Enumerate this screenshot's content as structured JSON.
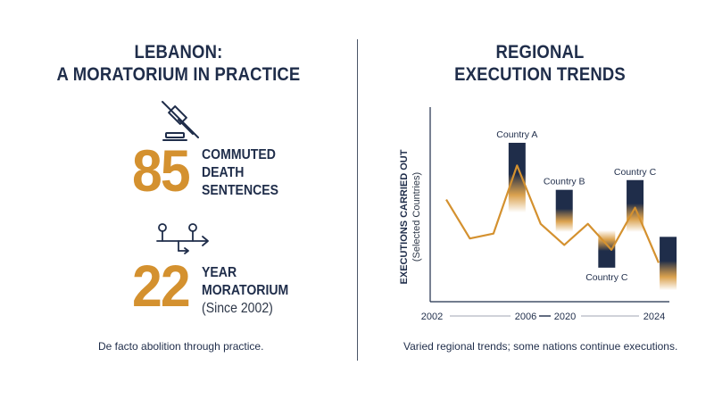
{
  "left_panel": {
    "heading_line1": "LEBANON:",
    "heading_line2": "A MORATORIUM IN PRACTICE",
    "stat1": {
      "number": "85",
      "label_line1": "COMMUTED",
      "label_line2": "DEATH",
      "label_line3": "SENTENCES"
    },
    "stat2": {
      "number": "22",
      "label_line1": "YEAR",
      "label_line2": "MORATORIUM",
      "label_line3": "(Since 2002)"
    },
    "caption": "De facto abolition through practice.",
    "icons": [
      "gavel-crossed-out-icon",
      "timeline-branch-icon"
    ]
  },
  "right_panel": {
    "heading_line1": "REGIONAL",
    "heading_line2": "EXECUTION TRENDS",
    "caption": "Varied regional trends; some nations continue executions."
  },
  "colors": {
    "navy": "#1f2d4a",
    "gold": "#d4912f",
    "bar": "#1f2d4a"
  },
  "chart_data": {
    "type": "line",
    "title": "",
    "ylabel": "EXECUTIONS CARRIED OUT",
    "ylabel_sub": "(Selected Countries)",
    "xlabel": "",
    "x_tick_labels": [
      "2002",
      "2006",
      "2020",
      "2024"
    ],
    "x_axis_breaks": [
      [
        "2002",
        "2006"
      ],
      [
        "2020",
        "2024"
      ]
    ],
    "series": [
      {
        "values": [
          63,
          39,
          42,
          84,
          48,
          35,
          48,
          32,
          58,
          24
        ]
      }
    ],
    "bars": [
      {
        "label": "Country A",
        "position": 3,
        "top": 98,
        "bottom": 55
      },
      {
        "label": "Country B",
        "position": 5,
        "top": 69,
        "bottom": 43
      },
      {
        "label": "Country C",
        "position": 6.8,
        "top": 44,
        "bottom": 21,
        "label_below": true
      },
      {
        "label": "Country C",
        "position": 8,
        "top": 75,
        "bottom": 43
      },
      {
        "label": "",
        "position": 9.4,
        "top": 40,
        "bottom": 7
      }
    ],
    "ylim": [
      0,
      120
    ],
    "grid": false,
    "legend": "none"
  }
}
